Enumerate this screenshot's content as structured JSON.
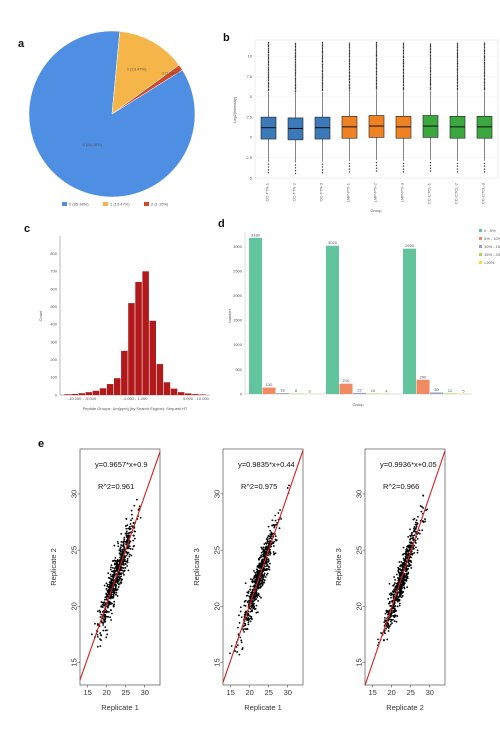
{
  "panels": {
    "a": "a",
    "b": "b",
    "c": "c",
    "d": "d",
    "e": "e"
  },
  "colors": {
    "pie0": "#4e8fe3",
    "pie1": "#f5b548",
    "pie2": "#cf4a2a",
    "box": [
      "#3b79b9",
      "#3b79b9",
      "#3b79b9",
      "#ee8224",
      "#ee8224",
      "#ee8224",
      "#3ba73f",
      "#3ba73f",
      "#3ba73f"
    ],
    "hist": "#b1191b",
    "bars": [
      "#62c49d",
      "#ef8a62",
      "#8da0cb",
      "#a6d854",
      "#ffd92f"
    ],
    "scatter_fit": "#d42020"
  },
  "chart_data": [
    {
      "type": "pie",
      "panel": "a",
      "slices": [
        {
          "label": "0 (85.38%)",
          "value": 85.38
        },
        {
          "label": "1 (13.47%)",
          "value": 13.47
        },
        {
          "label": "2 (1.15%)",
          "value": 1.15
        }
      ],
      "legend": [
        "0 (85.38%)",
        "1 (13.47%)",
        "2 (1.15%)"
      ]
    },
    {
      "type": "box",
      "panel": "b",
      "ylabel": "Log2(Intensity)",
      "xlabel": "Group",
      "ylim": [
        -5,
        12
      ],
      "yticks": [
        -5,
        -2.5,
        0,
        2.5,
        5,
        7.5,
        10
      ],
      "categories": [
        "CC-TTN-1",
        "CC-TTN-2",
        "CC-TTN-3",
        "LMP-PTI-1",
        "LMP-PTI-2",
        "LMP-PTI-3",
        "CC-CTCL-1",
        "CC-CTCL-2",
        "CC-CTCL-3"
      ],
      "medians": [
        1.2,
        1.1,
        1.2,
        1.3,
        1.4,
        1.3,
        1.4,
        1.3,
        1.3
      ]
    },
    {
      "type": "bar",
      "panel": "c",
      "ylabel": "Count",
      "xlabel": "Peptide Groups: Δm[ppm] (by Search Engine): Sequest HT",
      "ylim": [
        0,
        900
      ],
      "yticks": [
        0,
        100,
        200,
        300,
        400,
        500,
        600,
        700,
        800
      ],
      "xticks": [
        "-10.000 - -5.000",
        "-1.000 - 1.000",
        "5.000 - 10.000"
      ],
      "values": [
        4,
        6,
        10,
        16,
        24,
        38,
        62,
        95,
        250,
        520,
        640,
        700,
        420,
        175,
        72,
        36,
        16,
        9,
        5,
        3
      ]
    },
    {
      "type": "bar",
      "panel": "d",
      "ylabel": "Number",
      "xlabel": "Group",
      "legend": [
        "0 - 5%",
        "5% - 10%",
        "10% - 15%",
        "15% - 20%",
        ">20%"
      ],
      "ylim": [
        0,
        3300
      ],
      "yticks": [
        0,
        500,
        1000,
        1500,
        2000,
        2500,
        3000
      ],
      "groups": [
        {
          "values": [
            3180,
            130,
            18,
            8,
            3
          ]
        },
        {
          "values": [
            3020,
            210,
            22,
            10,
            4
          ]
        },
        {
          "values": [
            2960,
            290,
            30,
            12,
            5
          ]
        }
      ]
    },
    {
      "type": "scatter",
      "panel": "e",
      "plots": [
        {
          "equation": "y=0.9657*x+0.9",
          "r2": "R^2=0.961",
          "xlabel": "Replicate 1",
          "ylabel": "Replicate 2",
          "slope": 0.9657,
          "intercept": 0.9
        },
        {
          "equation": "y=0.9835*x+0.44",
          "r2": "R^2=0.975",
          "xlabel": "Replicate 1",
          "ylabel": "Replicate 3",
          "slope": 0.9835,
          "intercept": 0.44
        },
        {
          "equation": "y=0.9936*x+0.05",
          "r2": "R^2=0.966",
          "xlabel": "Replicate 2",
          "ylabel": "Replicate 3",
          "slope": 0.9936,
          "intercept": 0.05
        }
      ],
      "xticks": [
        15,
        20,
        25,
        30
      ],
      "yticks": [
        15,
        20,
        25,
        30
      ],
      "xlim": [
        13,
        34
      ],
      "ylim": [
        13,
        34
      ]
    }
  ]
}
